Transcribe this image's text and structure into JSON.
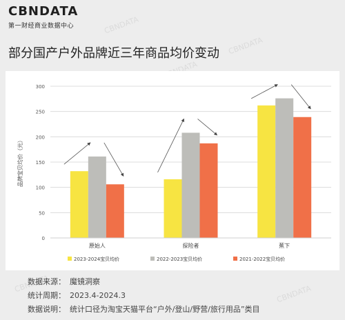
{
  "brand": {
    "name": "CBNDATA",
    "tagline": "第一财经商业数据中心"
  },
  "title": "部分国产户外品牌近三年商品均价变动",
  "watermark": "CBNDATA",
  "chart_data": {
    "type": "bar",
    "categories": [
      "原始人",
      "探险者",
      "蕉下"
    ],
    "series": [
      {
        "name": "2023-2024宝贝均价",
        "values": [
          132,
          116,
          262
        ],
        "color": "#f7e442"
      },
      {
        "name": "2022-2023宝贝均价",
        "values": [
          161,
          208,
          276
        ],
        "color": "#bdbdb9"
      },
      {
        "name": "2021-2022宝贝均价",
        "values": [
          106,
          187,
          239
        ],
        "color": "#f07048"
      }
    ],
    "ylabel": "品牌宝贝均价（元）",
    "ylim": [
      0,
      300
    ],
    "yticks": [
      0,
      50,
      100,
      150,
      200,
      250,
      300
    ],
    "grid": true,
    "legend": "bottom"
  },
  "footer": {
    "source_label": "数据来源：",
    "source_value": "魔镜洞察",
    "period_label": "统计周期：",
    "period_value": "2023.4-2024.3",
    "note_label": "数据说明：",
    "note_value": "统计口径为淘宝天猫平台“户外/登山/野营/旅行用品”类目"
  }
}
